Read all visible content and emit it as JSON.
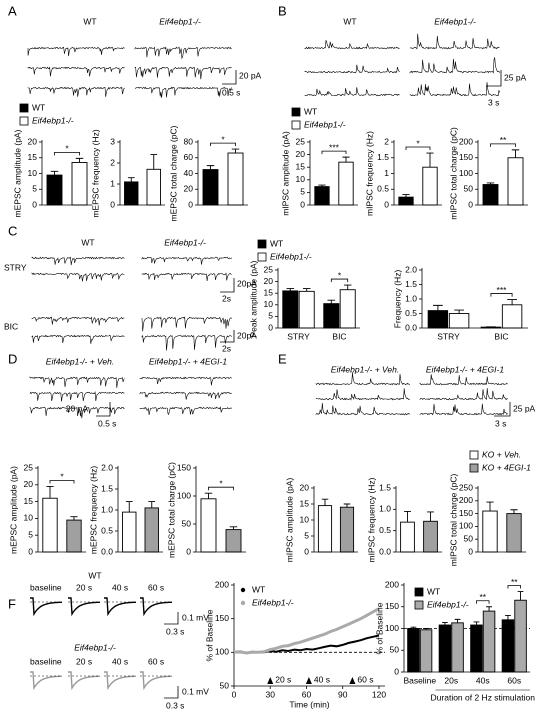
{
  "figure": {
    "panel_labels": [
      "A",
      "B",
      "C",
      "D",
      "E",
      "F"
    ],
    "a": {
      "traces": [
        "WT",
        "Eif4ebp1-/-"
      ],
      "scale": [
        "20 pA",
        "0.5 s"
      ]
    },
    "b": {
      "traces": [
        "WT",
        "Eif4ebp1-/-"
      ],
      "scale": [
        "25 pA",
        "3 s"
      ]
    },
    "c": {
      "traces": [
        "WT",
        "Eif4ebp1-/-"
      ],
      "rows": [
        "STRY",
        "BIC"
      ],
      "scale": [
        "20pA",
        "2s",
        "20pA",
        "2s"
      ]
    },
    "d": {
      "traces": [
        "Eif4ebp1-/- + Veh.",
        "Eif4ebp1-/- + 4EGI-1"
      ],
      "scale": [
        "20 pA",
        "0.5 s"
      ]
    },
    "e": {
      "traces": [
        "Eif4ebp1-/- + Veh.",
        "Eif4ebp1-/- + 4EGI-1"
      ],
      "scale": [
        "25 pA",
        "3 s"
      ]
    },
    "f": {
      "rows": [
        "WT",
        "Eif4ebp1-/-"
      ],
      "times": [
        "baseline",
        "20 s",
        "40 s",
        "60 s"
      ],
      "scale": [
        "0.1 mV",
        "0.3 s",
        "0.1 mV",
        "0.3 s"
      ]
    }
  },
  "chart_data": [
    {
      "type": "bar",
      "ylabel": "mEPSC amplitude (pA)",
      "ylim": [
        0,
        20
      ],
      "yticks": [
        0,
        5,
        10,
        15,
        20
      ],
      "legend": true,
      "significance": [
        "*"
      ],
      "series": [
        {
          "name": "WT",
          "color": "#000000",
          "values": [
            9.5
          ],
          "errors": [
            1.2
          ]
        },
        {
          "name": "Eif4ebp1-/-",
          "color": "#ffffff",
          "values": [
            13.5
          ],
          "errors": [
            1.3
          ]
        }
      ]
    },
    {
      "type": "bar",
      "ylabel": "mEPSC frequency (Hz)",
      "ylim": [
        0,
        3
      ],
      "yticks": [
        0,
        1,
        2,
        3
      ],
      "series": [
        {
          "name": "WT",
          "color": "#000000",
          "values": [
            1.1
          ],
          "errors": [
            0.2
          ]
        },
        {
          "name": "Eif4ebp1-/-",
          "color": "#ffffff",
          "values": [
            1.7
          ],
          "errors": [
            0.7
          ]
        }
      ]
    },
    {
      "type": "bar",
      "ylabel": "mEPSC total charge (pC)",
      "ylim": [
        0,
        80
      ],
      "yticks": [
        0,
        20,
        40,
        60,
        80
      ],
      "significance": [
        "*"
      ],
      "series": [
        {
          "name": "WT",
          "color": "#000000",
          "values": [
            45
          ],
          "errors": [
            5
          ]
        },
        {
          "name": "Eif4ebp1-/-",
          "color": "#ffffff",
          "values": [
            66
          ],
          "errors": [
            5
          ]
        }
      ]
    },
    {
      "type": "bar",
      "ylabel": "mIPSC amplitude (pA)",
      "ylim": [
        0,
        25
      ],
      "yticks": [
        0,
        5,
        10,
        15,
        20,
        25
      ],
      "legend": true,
      "significance": [
        "***"
      ],
      "series": [
        {
          "name": "WT",
          "color": "#000000",
          "values": [
            7.3
          ],
          "errors": [
            0.6
          ]
        },
        {
          "name": "Eif4ebp1-/-",
          "color": "#ffffff",
          "values": [
            17
          ],
          "errors": [
            2
          ]
        }
      ]
    },
    {
      "type": "bar",
      "ylabel": "mIPSC frequency (Hz)",
      "ylim": [
        0,
        2
      ],
      "yticks": [
        0,
        0.5,
        1,
        1.5,
        2
      ],
      "significance": [
        "*"
      ],
      "series": [
        {
          "name": "WT",
          "color": "#000000",
          "values": [
            0.25
          ],
          "errors": [
            0.08
          ]
        },
        {
          "name": "Eif4ebp1-/-",
          "color": "#ffffff",
          "values": [
            1.2
          ],
          "errors": [
            0.45
          ]
        }
      ]
    },
    {
      "type": "bar",
      "ylabel": "mIPSC total charge (pC)",
      "ylim": [
        0,
        200
      ],
      "yticks": [
        0,
        50,
        100,
        150,
        200
      ],
      "significance": [
        "**"
      ],
      "series": [
        {
          "name": "WT",
          "color": "#000000",
          "values": [
            65
          ],
          "errors": [
            5
          ]
        },
        {
          "name": "Eif4ebp1-/-",
          "color": "#ffffff",
          "values": [
            150
          ],
          "errors": [
            25
          ]
        }
      ]
    },
    {
      "type": "bar",
      "ylabel": "Peak amplitude (pA)",
      "categories": [
        "STRY",
        "BIC"
      ],
      "ylim": [
        0,
        25
      ],
      "yticks": [
        0,
        5,
        10,
        15,
        20,
        25
      ],
      "legend": true,
      "significance": [
        null,
        "*"
      ],
      "series": [
        {
          "name": "WT",
          "color": "#000000",
          "values": [
            16,
            10.5
          ],
          "errors": [
            1,
            1.5
          ]
        },
        {
          "name": "Eif4ebp1-/-",
          "color": "#ffffff",
          "values": [
            15.8,
            16.5
          ],
          "errors": [
            1.2,
            2
          ]
        }
      ]
    },
    {
      "type": "bar",
      "ylabel": "Frequency (Hz)",
      "categories": [
        "STRY",
        "BIC"
      ],
      "ylim": [
        0,
        2
      ],
      "yticks": [
        {
          "value": 0,
          "label": "0.0"
        },
        0.5,
        {
          "value": 1,
          "label": "1.0"
        },
        1.5,
        {
          "value": 2,
          "label": "2.0"
        }
      ],
      "significance": [
        null,
        "***"
      ],
      "series": [
        {
          "name": "WT",
          "color": "#000000",
          "values": [
            0.6,
            0.03
          ],
          "errors": [
            0.18,
            0.01
          ]
        },
        {
          "name": "Eif4ebp1-/-",
          "color": "#ffffff",
          "values": [
            0.5,
            0.8
          ],
          "errors": [
            0.12,
            0.18
          ]
        }
      ]
    },
    {
      "type": "bar",
      "ylabel": "mEPSC amplitude (pA)",
      "ylim": [
        0,
        25
      ],
      "yticks": [
        0,
        5,
        10,
        15,
        20,
        25
      ],
      "significance": [
        "*"
      ],
      "series": [
        {
          "name": "KO + Veh.",
          "color": "#ffffff",
          "values": [
            16
          ],
          "errors": [
            3.5
          ]
        },
        {
          "name": "KO + 4EGI-1",
          "color": "#a0a0a0",
          "values": [
            9.5
          ],
          "errors": [
            1
          ]
        }
      ]
    },
    {
      "type": "bar",
      "ylabel": "mEPSC frequency (Hz)",
      "ylim": [
        0,
        2
      ],
      "yticks": [
        {
          "value": 0,
          "label": "0.0"
        },
        0.5,
        {
          "value": 1,
          "label": "1.0"
        },
        1.5,
        {
          "value": 2,
          "label": "2.0"
        }
      ],
      "series": [
        {
          "name": "KO + Veh.",
          "color": "#ffffff",
          "values": [
            0.95
          ],
          "errors": [
            0.25
          ]
        },
        {
          "name": "KO + 4EGI-1",
          "color": "#a0a0a0",
          "values": [
            1.05
          ],
          "errors": [
            0.15
          ]
        }
      ]
    },
    {
      "type": "bar",
      "ylabel": "mEPSC total charge (pC)",
      "ylim": [
        0,
        150
      ],
      "yticks": [
        0,
        50,
        100,
        150
      ],
      "significance": [
        "*"
      ],
      "series": [
        {
          "name": "KO + Veh.",
          "color": "#ffffff",
          "values": [
            95
          ],
          "errors": [
            10
          ]
        },
        {
          "name": "KO + 4EGI-1",
          "color": "#a0a0a0",
          "values": [
            40
          ],
          "errors": [
            5
          ]
        }
      ]
    },
    {
      "type": "bar",
      "ylabel": "mIPSC amplitude (pA)",
      "ylim": [
        0,
        20
      ],
      "yticks": [
        0,
        5,
        10,
        15,
        20
      ],
      "series": [
        {
          "name": "KO + Veh.",
          "color": "#ffffff",
          "values": [
            14.5
          ],
          "errors": [
            2
          ]
        },
        {
          "name": "KO + 4EGI-1",
          "color": "#a0a0a0",
          "values": [
            14
          ],
          "errors": [
            1
          ]
        }
      ]
    },
    {
      "type": "bar",
      "ylabel": "mIPSC frequency (Hz)",
      "ylim": [
        0,
        1.5
      ],
      "yticks": [
        {
          "value": 0,
          "label": "0.0"
        },
        0.5,
        {
          "value": 1,
          "label": "1.0"
        },
        1.5
      ],
      "series": [
        {
          "name": "KO + Veh.",
          "color": "#ffffff",
          "values": [
            0.7
          ],
          "errors": [
            0.25
          ]
        },
        {
          "name": "KO + 4EGI-1",
          "color": "#a0a0a0",
          "values": [
            0.72
          ],
          "errors": [
            0.22
          ]
        }
      ]
    },
    {
      "type": "bar",
      "ylabel": "mIPSC total charge (pC)",
      "ylim": [
        0,
        250
      ],
      "yticks": [
        0,
        50,
        100,
        150,
        200,
        250
      ],
      "legend": true,
      "series": [
        {
          "name": "KO + Veh.",
          "color": "#ffffff",
          "values": [
            160
          ],
          "errors": [
            35
          ]
        },
        {
          "name": "KO + 4EGI-1",
          "color": "#a0a0a0",
          "values": [
            150
          ],
          "errors": [
            15
          ]
        }
      ]
    },
    {
      "type": "line",
      "ylabel": "% of Baseline",
      "xlabel": "Time (min)",
      "xlim": [
        0,
        125
      ],
      "xticks": [
        0,
        30,
        60,
        90,
        120
      ],
      "ylim": [
        50,
        200
      ],
      "yticks": [
        50,
        100,
        150,
        200
      ],
      "reference_line": 100,
      "legend": true,
      "x": [
        0,
        5,
        10,
        15,
        20,
        25,
        30,
        35,
        40,
        45,
        50,
        55,
        60,
        65,
        70,
        75,
        80,
        85,
        90,
        95,
        100,
        105,
        110,
        115,
        120
      ],
      "annotations": [
        {
          "x": 30,
          "text": "20 s"
        },
        {
          "x": 62,
          "text": "40 s"
        },
        {
          "x": 98,
          "text": "60 s"
        }
      ],
      "series": [
        {
          "name": "WT",
          "color": "#000000",
          "values": [
            100,
            100,
            99,
            101,
            100,
            100,
            102,
            101,
            103,
            102,
            104,
            103,
            105,
            104,
            106,
            108,
            110,
            109,
            111,
            114,
            116,
            118,
            121,
            123,
            125
          ]
        },
        {
          "name": "Eif4ebp1-/-",
          "color": "#aaaaaa",
          "values": [
            100,
            101,
            99,
            100,
            100,
            101,
            104,
            106,
            109,
            110,
            113,
            115,
            118,
            121,
            124,
            127,
            131,
            134,
            138,
            142,
            146,
            150,
            155,
            160,
            165
          ]
        }
      ]
    },
    {
      "type": "bar",
      "ylabel": "% of Baseline",
      "xlabel": "Duration of 2 Hz stimulation",
      "categories": [
        "Baseline",
        "20s",
        "40s",
        "60s"
      ],
      "ylim": [
        0,
        200
      ],
      "yticks": [
        0,
        50,
        100,
        150,
        200
      ],
      "reference_line": 100,
      "legend": true,
      "significance": [
        null,
        null,
        "**",
        "**"
      ],
      "series": [
        {
          "name": "WT",
          "color": "#000000",
          "values": [
            100,
            108,
            108,
            120
          ],
          "errors": [
            3,
            6,
            7,
            10
          ]
        },
        {
          "name": "Eif4ebp1-/-",
          "color": "#aaaaaa",
          "values": [
            97,
            113,
            140,
            165
          ],
          "errors": [
            3,
            8,
            10,
            20
          ]
        }
      ]
    }
  ]
}
